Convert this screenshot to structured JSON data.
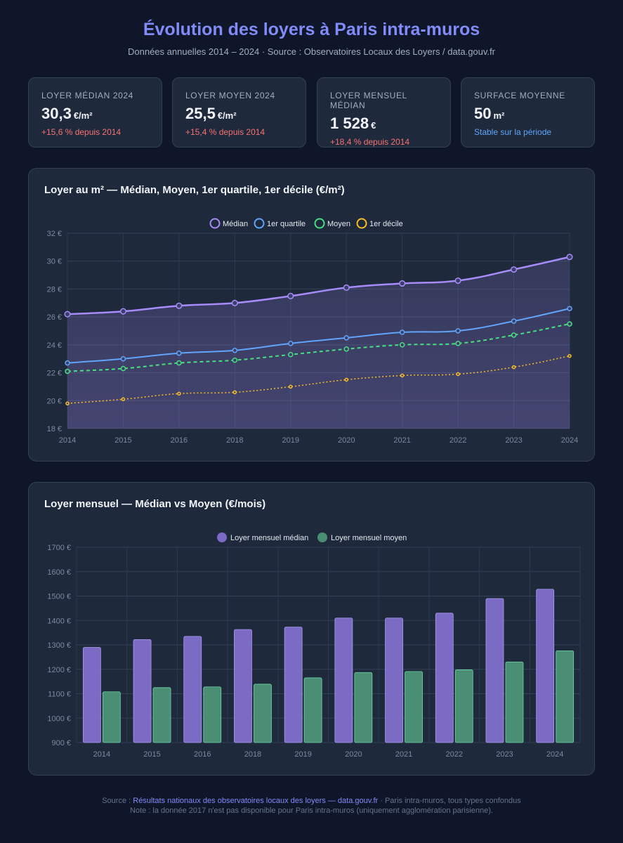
{
  "header": {
    "title": "Évolution des loyers à Paris intra-muros",
    "subtitle": "Données annuelles 2014 – 2024 · Source : Observatoires Locaux des Loyers / data.gouv.fr"
  },
  "kpis": [
    {
      "label": "Loyer médian 2024",
      "value": "30,3",
      "unit": "€/m²",
      "delta": "+15,6 % depuis 2014",
      "delta_color": "#f87171"
    },
    {
      "label": "Loyer moyen 2024",
      "value": "25,5",
      "unit": "€/m²",
      "delta": "+15,4 % depuis 2014",
      "delta_color": "#f87171"
    },
    {
      "label": "Loyer mensuel médian",
      "value": "1 528",
      "unit": "€",
      "delta": "+18,4 % depuis 2014",
      "delta_color": "#f87171"
    },
    {
      "label": "Surface moyenne",
      "value": "50",
      "unit": "m²",
      "delta": "Stable sur la période",
      "delta_color": "#60a5fa"
    }
  ],
  "chart_data": [
    {
      "type": "line",
      "title": "Loyer au m² — Médian, Moyen, 1er quartile, 1er décile (€/m²)",
      "categories": [
        "2014",
        "2015",
        "2016",
        "2018",
        "2019",
        "2020",
        "2021",
        "2022",
        "2023",
        "2024"
      ],
      "ylim": [
        18,
        32
      ],
      "yticks": [
        18,
        20,
        22,
        24,
        26,
        28,
        30,
        32
      ],
      "tick_suffix": " €",
      "legend_position": "top-center",
      "grid": true,
      "series": [
        {
          "name": "Médian",
          "color": "#a78bfa",
          "style": "solid",
          "fill": true,
          "values": [
            26.2,
            26.4,
            26.8,
            27.0,
            27.5,
            28.1,
            28.4,
            28.6,
            29.4,
            30.3
          ]
        },
        {
          "name": "1er quartile",
          "color": "#60a5fa",
          "style": "solid",
          "fill": false,
          "values": [
            22.7,
            23.0,
            23.4,
            23.6,
            24.1,
            24.5,
            24.9,
            25.0,
            25.7,
            26.6
          ]
        },
        {
          "name": "Moyen",
          "color": "#4ade80",
          "style": "dashed",
          "fill": false,
          "values": [
            22.1,
            22.3,
            22.7,
            22.9,
            23.3,
            23.7,
            24.0,
            24.1,
            24.7,
            25.5
          ]
        },
        {
          "name": "1er décile",
          "color": "#fbbf24",
          "style": "dotted",
          "fill": false,
          "values": [
            19.8,
            20.1,
            20.5,
            20.6,
            21.0,
            21.5,
            21.8,
            21.9,
            22.4,
            23.2
          ]
        }
      ]
    },
    {
      "type": "bar",
      "title": "Loyer mensuel — Médian vs Moyen (€/mois)",
      "categories": [
        "2014",
        "2015",
        "2016",
        "2018",
        "2019",
        "2020",
        "2021",
        "2022",
        "2023",
        "2024"
      ],
      "ylim": [
        900,
        1700
      ],
      "yticks": [
        900,
        1000,
        1100,
        1200,
        1300,
        1400,
        1500,
        1600,
        1700
      ],
      "tick_suffix": " €",
      "legend_position": "top-center",
      "grid": true,
      "series": [
        {
          "name": "Loyer mensuel médian",
          "color": "#7c6bc4",
          "values": [
            1290,
            1322,
            1335,
            1363,
            1373,
            1410,
            1410,
            1430,
            1490,
            1528
          ]
        },
        {
          "name": "Loyer mensuel moyen",
          "color": "#4a8f73",
          "values": [
            1108,
            1125,
            1128,
            1139,
            1165,
            1187,
            1191,
            1198,
            1230,
            1276
          ]
        }
      ]
    }
  ],
  "footer": {
    "line1_prefix": "Source : ",
    "line1_link": "Résultats nationaux des observatoires locaux des loyers — data.gouv.fr",
    "line1_suffix": " · Paris intra-muros, tous types confondus",
    "line2": "Note : la donnée 2017 n'est pas disponible pour Paris intra-muros (uniquement agglomération parisienne)."
  }
}
